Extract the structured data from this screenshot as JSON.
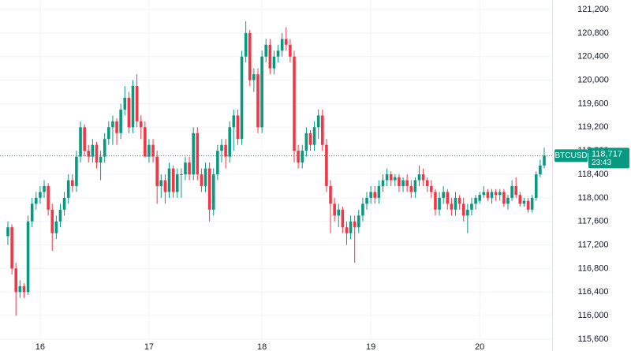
{
  "chart_data": {
    "type": "candlestick",
    "up_color": "#089981",
    "down_color": "#f23645",
    "grid": true,
    "ylim": [
      115399,
      121361
    ],
    "yticks": [
      {
        "value": 121200,
        "label": "121,200"
      },
      {
        "value": 120800,
        "label": "120,800"
      },
      {
        "value": 120400,
        "label": "120,400"
      },
      {
        "value": 120000,
        "label": "120,000"
      },
      {
        "value": 119600,
        "label": "119,600"
      },
      {
        "value": 119200,
        "label": "119,200"
      },
      {
        "value": 118800,
        "label": "118,800"
      },
      {
        "value": 118400,
        "label": "118,400"
      },
      {
        "value": 118000,
        "label": "118,000"
      },
      {
        "value": 117600,
        "label": "117,600"
      },
      {
        "value": 117200,
        "label": "117,200"
      },
      {
        "value": 116800,
        "label": "116,800"
      },
      {
        "value": 116400,
        "label": "116,400"
      },
      {
        "value": 116000,
        "label": "116,000"
      },
      {
        "value": 115600,
        "label": "115,600"
      }
    ],
    "xticks": [
      {
        "value": 8,
        "label": "16"
      },
      {
        "value": 35,
        "label": "17"
      },
      {
        "value": 63,
        "label": "18"
      },
      {
        "value": 90,
        "label": "19"
      },
      {
        "value": 117,
        "label": "20"
      }
    ],
    "last_price": {
      "symbol": "BTCUSD",
      "value": 118717,
      "label": "118,717",
      "countdown": "23:43"
    },
    "ohlc": [
      [
        117350,
        117600,
        117200,
        117500
      ],
      [
        117500,
        117550,
        116700,
        116800
      ],
      [
        116800,
        116900,
        116000,
        116400
      ],
      [
        116400,
        116600,
        116300,
        116500
      ],
      [
        116500,
        116550,
        116300,
        116400
      ],
      [
        116400,
        117700,
        116350,
        117600
      ],
      [
        117600,
        118000,
        117500,
        117900
      ],
      [
        117900,
        118100,
        117800,
        118000
      ],
      [
        118000,
        118200,
        117900,
        118100
      ],
      [
        118100,
        118300,
        118000,
        118200
      ],
      [
        118200,
        118250,
        117700,
        117800
      ],
      [
        117800,
        117900,
        117100,
        117400
      ],
      [
        117400,
        117700,
        117300,
        117600
      ],
      [
        117600,
        117900,
        117500,
        117800
      ],
      [
        117800,
        118100,
        117700,
        118000
      ],
      [
        118000,
        118400,
        117900,
        118300
      ],
      [
        118300,
        118400,
        118100,
        118200
      ],
      [
        118200,
        118800,
        118100,
        118700
      ],
      [
        118700,
        119300,
        118600,
        119200
      ],
      [
        119200,
        119250,
        118700,
        118800
      ],
      [
        118800,
        118900,
        118600,
        118700
      ],
      [
        118700,
        119000,
        118600,
        118900
      ],
      [
        118900,
        118950,
        118500,
        118600
      ],
      [
        118600,
        118800,
        118300,
        118700
      ],
      [
        118700,
        119100,
        118600,
        119000
      ],
      [
        119000,
        119300,
        118900,
        119200
      ],
      [
        119200,
        119400,
        118900,
        119300
      ],
      [
        119300,
        119350,
        118900,
        119100
      ],
      [
        119100,
        119600,
        119000,
        119500
      ],
      [
        119500,
        119900,
        119400,
        119700
      ],
      [
        119700,
        119800,
        119100,
        119200
      ],
      [
        119200,
        120000,
        119100,
        119900
      ],
      [
        119900,
        120100,
        119200,
        119300
      ],
      [
        119300,
        119400,
        119000,
        119200
      ],
      [
        119200,
        119300,
        118700,
        118700
      ],
      [
        118700,
        119000,
        118600,
        118900
      ],
      [
        118900,
        119000,
        118600,
        118700
      ],
      [
        118700,
        118800,
        117900,
        118200
      ],
      [
        118200,
        118400,
        118000,
        118300
      ],
      [
        118300,
        118400,
        117900,
        118100
      ],
      [
        118100,
        118600,
        118000,
        118500
      ],
      [
        118500,
        118550,
        118000,
        118100
      ],
      [
        118100,
        118500,
        118000,
        118400
      ],
      [
        118400,
        118500,
        118000,
        118400
      ],
      [
        118400,
        118700,
        118300,
        118600
      ],
      [
        118600,
        118700,
        118300,
        118400
      ],
      [
        118400,
        119200,
        118300,
        119100
      ],
      [
        119100,
        119200,
        118300,
        118400
      ],
      [
        118400,
        118500,
        118100,
        118200
      ],
      [
        118200,
        118600,
        118100,
        118500
      ],
      [
        118500,
        118600,
        117600,
        117800
      ],
      [
        117800,
        118500,
        117700,
        118400
      ],
      [
        118400,
        118900,
        118300,
        118800
      ],
      [
        118800,
        119000,
        118600,
        118900
      ],
      [
        118900,
        119000,
        118500,
        118700
      ],
      [
        118700,
        119300,
        118600,
        119200
      ],
      [
        119200,
        119500,
        118800,
        119400
      ],
      [
        119400,
        119500,
        118900,
        119000
      ],
      [
        119000,
        120500,
        118900,
        120400
      ],
      [
        120400,
        121000,
        120300,
        120800
      ],
      [
        120800,
        120850,
        119900,
        120000
      ],
      [
        120000,
        120200,
        119800,
        120100
      ],
      [
        120100,
        120200,
        119100,
        119200
      ],
      [
        119200,
        120500,
        119100,
        120400
      ],
      [
        120400,
        120700,
        120300,
        120600
      ],
      [
        120600,
        120700,
        120100,
        120200
      ],
      [
        120200,
        120500,
        120100,
        120400
      ],
      [
        120400,
        120600,
        120300,
        120500
      ],
      [
        120500,
        120800,
        120400,
        120700
      ],
      [
        120700,
        120900,
        120500,
        120600
      ],
      [
        120600,
        120700,
        120300,
        120400
      ],
      [
        120400,
        120500,
        118600,
        118800
      ],
      [
        118800,
        118900,
        118500,
        118600
      ],
      [
        118600,
        118900,
        118500,
        118800
      ],
      [
        118800,
        119200,
        118700,
        119100
      ],
      [
        119100,
        119150,
        118800,
        118900
      ],
      [
        118900,
        119300,
        118800,
        119200
      ],
      [
        119200,
        119500,
        119000,
        119400
      ],
      [
        119400,
        119500,
        118800,
        118900
      ],
      [
        118900,
        119000,
        118100,
        118200
      ],
      [
        118200,
        118300,
        117400,
        117900
      ],
      [
        117900,
        118000,
        117600,
        117700
      ],
      [
        117700,
        117900,
        117500,
        117800
      ],
      [
        117800,
        117850,
        117400,
        117500
      ],
      [
        117500,
        117600,
        117200,
        117400
      ],
      [
        117400,
        117700,
        117300,
        117600
      ],
      [
        117600,
        117700,
        116900,
        117500
      ],
      [
        117500,
        117800,
        117400,
        117700
      ],
      [
        117700,
        118000,
        117600,
        117900
      ],
      [
        117900,
        118100,
        117800,
        118000
      ],
      [
        118000,
        118200,
        117900,
        118100
      ],
      [
        118100,
        118200,
        117900,
        118000
      ],
      [
        118000,
        118300,
        117900,
        118200
      ],
      [
        118200,
        118400,
        118100,
        118300
      ],
      [
        118300,
        118500,
        118200,
        118400
      ],
      [
        118400,
        118450,
        118200,
        118300
      ],
      [
        118300,
        118400,
        118200,
        118350
      ],
      [
        118350,
        118400,
        118100,
        118200
      ],
      [
        118200,
        118350,
        118100,
        118300
      ],
      [
        118300,
        118400,
        118100,
        118200
      ],
      [
        118200,
        118300,
        118000,
        118100
      ],
      [
        118100,
        118350,
        118000,
        118300
      ],
      [
        118300,
        118550,
        118200,
        118400
      ],
      [
        118400,
        118500,
        118200,
        118300
      ],
      [
        118300,
        118350,
        118100,
        118200
      ],
      [
        118200,
        118300,
        118000,
        118100
      ],
      [
        118100,
        118150,
        117700,
        117800
      ],
      [
        117800,
        118100,
        117700,
        118000
      ],
      [
        118000,
        118200,
        117900,
        118100
      ],
      [
        118100,
        118150,
        117800,
        117900
      ],
      [
        117900,
        118000,
        117700,
        117800
      ],
      [
        117800,
        118100,
        117700,
        118000
      ],
      [
        118000,
        118050,
        117800,
        117900
      ],
      [
        117900,
        118000,
        117600,
        117700
      ],
      [
        117700,
        117900,
        117400,
        117800
      ],
      [
        117800,
        118000,
        117700,
        117900
      ],
      [
        117900,
        118050,
        117800,
        118000
      ],
      [
        117950,
        118100,
        117900,
        118050
      ],
      [
        118050,
        118200,
        118000,
        118100
      ],
      [
        118100,
        118150,
        117950,
        118000
      ],
      [
        118000,
        118150,
        117900,
        118100
      ],
      [
        118100,
        118150,
        117950,
        118050
      ],
      [
        118050,
        118150,
        117950,
        118100
      ],
      [
        118100,
        118150,
        117850,
        117900
      ],
      [
        117900,
        118050,
        117800,
        118000
      ],
      [
        118000,
        118300,
        117950,
        118200
      ],
      [
        118200,
        118350,
        118000,
        118050
      ],
      [
        118050,
        118100,
        117850,
        117900
      ],
      [
        117900,
        118000,
        117850,
        117950
      ],
      [
        117950,
        118000,
        117750,
        117800
      ],
      [
        117800,
        118050,
        117750,
        118000
      ],
      [
        118000,
        118450,
        117950,
        118400
      ],
      [
        118400,
        118650,
        118350,
        118550
      ],
      [
        118550,
        118850,
        118500,
        118717
      ]
    ]
  }
}
